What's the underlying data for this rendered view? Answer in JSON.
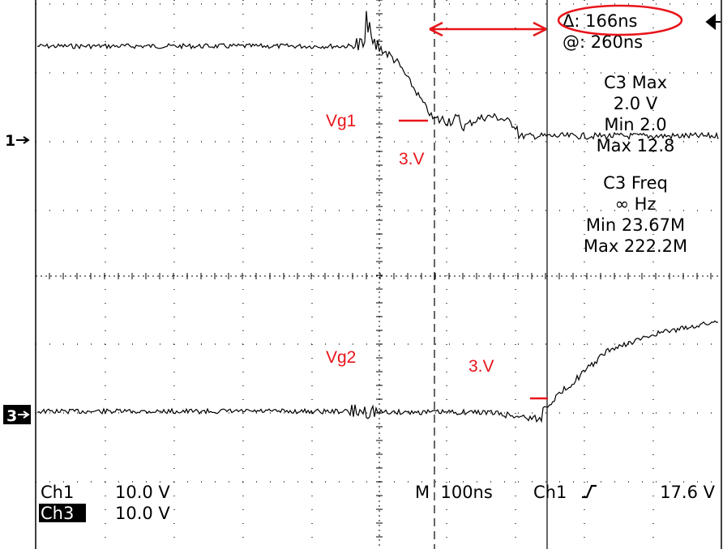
{
  "scope": {
    "channel_markers": {
      "ch1": "1",
      "ch3": "3"
    },
    "cursor": {
      "delta": "Δ: 166ns",
      "at": "@: 260ns"
    },
    "measurements": [
      {
        "title": "C3 Max",
        "value": "2.0 V",
        "min": "Min 2.0",
        "max": "Max 12.8"
      },
      {
        "title": "C3 Freq",
        "value": "∞ Hz",
        "min": "Min 23.67M",
        "max": "Max 222.2M"
      }
    ],
    "status": {
      "ch1_label": "Ch1",
      "ch1_scale": "10.0 V",
      "ch3_label": "Ch3",
      "ch3_scale": "10.0 V",
      "timebase": "M  100ns",
      "trigger_source": "Ch1",
      "trigger_level": "17.6 V"
    },
    "annotations": {
      "vg1": "Vg1",
      "vg1_level": "3.V",
      "vg2": "Vg2",
      "vg2_level": "3.V"
    },
    "colors": {
      "trace": "#000000",
      "grid": "#000000",
      "annotation": "#e8141a"
    },
    "icons": [
      "trigger-arrow-icon",
      "double-arrow-icon"
    ]
  }
}
